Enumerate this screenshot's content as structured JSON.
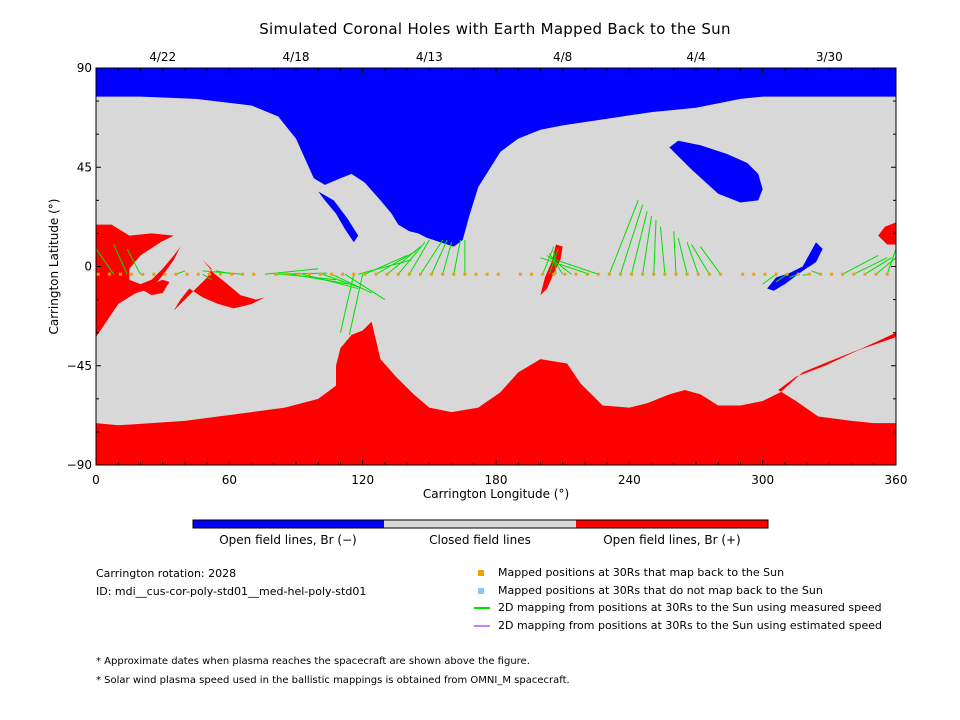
{
  "chart_data": {
    "type": "heatmap",
    "title": "Simulated Coronal Holes with Earth Mapped Back to the Sun",
    "xlabel": "Carrington Longitude (°)",
    "ylabel": "Carrington Latitude (°)",
    "xlim": [
      0,
      360
    ],
    "ylim": [
      -90,
      90
    ],
    "x_ticks": [
      0,
      60,
      120,
      180,
      240,
      300,
      360
    ],
    "y_ticks": [
      90,
      45,
      0,
      -45,
      -90
    ],
    "y_tick_labels": [
      "90",
      "45",
      "0",
      "−45",
      "−90"
    ],
    "top_dates": [
      {
        "lon": 30,
        "label": "4/22"
      },
      {
        "lon": 90,
        "label": "4/18"
      },
      {
        "lon": 150,
        "label": "4/13"
      },
      {
        "lon": 210,
        "label": "4/8"
      },
      {
        "lon": 270,
        "label": "4/4"
      },
      {
        "lon": 330,
        "label": "3/30"
      }
    ],
    "colors": {
      "open_negative": "#0000ff",
      "closed": "#d8d8d8",
      "open_positive": "#ff0000",
      "mapped": "#f0a000",
      "not_mapped": "#88c8f0",
      "measured": "#00e000",
      "estimated": "#c080ff"
    },
    "regions": {
      "open_negative": [
        [
          [
            0,
            90
          ],
          [
            360,
            90
          ],
          [
            360,
            77
          ],
          [
            335,
            77
          ],
          [
            300,
            77
          ],
          [
            290,
            76
          ],
          [
            270,
            72
          ],
          [
            250,
            70
          ],
          [
            230,
            67
          ],
          [
            210,
            64
          ],
          [
            200,
            62
          ],
          [
            190,
            58
          ],
          [
            182,
            52
          ],
          [
            172,
            36
          ],
          [
            168,
            23
          ],
          [
            165,
            12
          ],
          [
            161,
            9
          ],
          [
            155,
            11
          ],
          [
            149,
            13
          ],
          [
            145,
            15
          ],
          [
            141,
            16
          ],
          [
            136,
            19
          ],
          [
            133,
            24
          ],
          [
            128,
            30
          ],
          [
            121,
            38
          ],
          [
            115,
            42
          ],
          [
            110,
            40
          ],
          [
            103,
            37
          ],
          [
            98,
            40
          ],
          [
            90,
            58
          ],
          [
            82,
            68
          ],
          [
            70,
            73
          ],
          [
            45,
            76
          ],
          [
            20,
            77
          ],
          [
            0,
            77
          ]
        ],
        [
          [
            0,
            77
          ],
          [
            0,
            90
          ]
        ],
        [
          [
            258,
            54
          ],
          [
            268,
            44
          ],
          [
            280,
            33
          ],
          [
            290,
            29
          ],
          [
            298,
            30
          ],
          [
            300,
            35
          ],
          [
            298,
            42
          ],
          [
            293,
            47
          ],
          [
            284,
            51
          ],
          [
            272,
            55
          ],
          [
            262,
            57
          ]
        ],
        [
          [
            100,
            34
          ],
          [
            107,
            30
          ],
          [
            113,
            22
          ],
          [
            118,
            14
          ],
          [
            116,
            11
          ],
          [
            112,
            17
          ],
          [
            108,
            24
          ],
          [
            103,
            30
          ]
        ],
        [
          [
            324,
            11
          ],
          [
            327,
            8
          ],
          [
            324,
            2
          ],
          [
            318,
            -2
          ],
          [
            310,
            -8
          ],
          [
            305,
            -11
          ],
          [
            302,
            -10
          ],
          [
            306,
            -5
          ],
          [
            312,
            -3
          ],
          [
            318,
            0
          ]
        ]
      ],
      "open_positive": [
        [
          [
            0,
            -90
          ],
          [
            360,
            -90
          ],
          [
            360,
            -71
          ],
          [
            350,
            -71
          ],
          [
            340,
            -70
          ],
          [
            325,
            -68
          ],
          [
            315,
            -61
          ],
          [
            307,
            -56
          ],
          [
            315,
            -50
          ],
          [
            328,
            -45
          ],
          [
            343,
            -38
          ],
          [
            360,
            -32
          ],
          [
            360,
            -30
          ],
          [
            345,
            -37
          ],
          [
            330,
            -43
          ],
          [
            318,
            -48
          ],
          [
            308,
            -57
          ],
          [
            300,
            -61
          ],
          [
            290,
            -63
          ],
          [
            280,
            -63
          ],
          [
            272,
            -58
          ],
          [
            265,
            -56
          ],
          [
            258,
            -58
          ],
          [
            248,
            -62
          ],
          [
            240,
            -64
          ],
          [
            228,
            -63
          ],
          [
            218,
            -53
          ],
          [
            212,
            -44
          ],
          [
            200,
            -42
          ],
          [
            190,
            -48
          ],
          [
            182,
            -57
          ],
          [
            172,
            -64
          ],
          [
            160,
            -66
          ],
          [
            150,
            -64
          ],
          [
            143,
            -58
          ],
          [
            135,
            -50
          ],
          [
            128,
            -42
          ],
          [
            124,
            -25
          ],
          [
            120,
            -29
          ],
          [
            115,
            -31
          ],
          [
            110,
            -37
          ],
          [
            108,
            -45
          ],
          [
            108,
            -54
          ],
          [
            100,
            -60
          ],
          [
            85,
            -64
          ],
          [
            70,
            -66
          ],
          [
            55,
            -68
          ],
          [
            40,
            -70
          ],
          [
            25,
            -71
          ],
          [
            10,
            -72
          ],
          [
            0,
            -71
          ]
        ],
        [
          [
            0,
            19
          ],
          [
            7,
            19
          ],
          [
            15,
            14
          ],
          [
            25,
            15
          ],
          [
            35,
            14
          ],
          [
            29,
            11
          ],
          [
            20,
            5
          ],
          [
            15,
            -1
          ],
          [
            15,
            -6
          ],
          [
            20,
            -8
          ],
          [
            25,
            -6
          ],
          [
            30,
            -1
          ],
          [
            35,
            5
          ],
          [
            38,
            9
          ],
          [
            35,
            3
          ],
          [
            30,
            -4
          ],
          [
            25,
            -10
          ],
          [
            18,
            -12
          ],
          [
            10,
            -17
          ],
          [
            0,
            -32
          ]
        ],
        [
          [
            20,
            -10
          ],
          [
            25,
            -13
          ],
          [
            30,
            -12
          ],
          [
            33,
            -7
          ],
          [
            30,
            -6
          ],
          [
            25,
            -8
          ]
        ],
        [
          [
            48,
            3
          ],
          [
            53,
            -3
          ],
          [
            58,
            -7
          ],
          [
            65,
            -13
          ],
          [
            72,
            -15
          ],
          [
            76,
            -14
          ],
          [
            70,
            -17
          ],
          [
            62,
            -19
          ],
          [
            55,
            -17
          ],
          [
            48,
            -14
          ],
          [
            42,
            -10
          ],
          [
            38,
            -15
          ],
          [
            35,
            -20
          ],
          [
            45,
            -10
          ],
          [
            50,
            -5
          ],
          [
            52,
            -1
          ]
        ],
        [
          [
            360,
            20
          ],
          [
            355,
            18
          ],
          [
            352,
            14
          ],
          [
            356,
            10
          ],
          [
            360,
            10
          ]
        ],
        [
          [
            207,
            10
          ],
          [
            210,
            9
          ],
          [
            209,
            3
          ],
          [
            206,
            -3
          ],
          [
            203,
            -10
          ],
          [
            200,
            -13
          ],
          [
            202,
            -5
          ],
          [
            205,
            2
          ]
        ]
      ]
    },
    "mapped_points_at_30Rs": [
      1,
      6,
      11,
      16,
      21,
      26,
      31,
      36,
      41,
      46,
      51,
      56,
      61,
      66,
      71,
      81,
      86,
      91,
      96,
      101,
      106,
      111,
      116,
      121,
      126,
      131,
      136,
      141,
      146,
      151,
      156,
      161,
      166,
      171,
      176,
      181,
      191,
      196,
      201,
      206,
      211,
      216,
      221,
      226,
      231,
      236,
      241,
      246,
      251,
      256,
      261,
      266,
      271,
      276,
      281,
      291,
      296,
      301,
      306,
      311,
      316,
      321,
      326,
      331,
      336,
      341,
      346,
      351,
      356
    ],
    "measured_speed_mappings": [
      {
        "from": 8,
        "to": [
          0,
          8
        ]
      },
      {
        "from": 14,
        "to": [
          8,
          10
        ]
      },
      {
        "from": 20,
        "to": [
          14,
          8
        ]
      },
      {
        "from": 36,
        "to": [
          40,
          -2
        ]
      },
      {
        "from": 48,
        "to": [
          52,
          -6
        ]
      },
      {
        "from": 62,
        "to": [
          54,
          -2
        ]
      },
      {
        "from": 66,
        "to": [
          48,
          -2
        ]
      },
      {
        "from": 76,
        "to": [
          100,
          -1
        ]
      },
      {
        "from": 80,
        "to": [
          104,
          -3
        ]
      },
      {
        "from": 84,
        "to": [
          108,
          -6
        ]
      },
      {
        "from": 88,
        "to": [
          114,
          -8
        ]
      },
      {
        "from": 93,
        "to": [
          118,
          -10
        ]
      },
      {
        "from": 102,
        "to": [
          120,
          -10
        ]
      },
      {
        "from": 106,
        "to": [
          124,
          -12
        ]
      },
      {
        "from": 112,
        "to": [
          130,
          -15
        ]
      },
      {
        "from": 118,
        "to": [
          142,
          3
        ]
      },
      {
        "from": 121,
        "to": [
          140,
          5
        ]
      },
      {
        "from": 126,
        "to": [
          144,
          7
        ]
      },
      {
        "from": 131,
        "to": [
          146,
          9
        ]
      },
      {
        "from": 136,
        "to": [
          148,
          11
        ]
      },
      {
        "from": 141,
        "to": [
          150,
          12
        ]
      },
      {
        "from": 146,
        "to": [
          156,
          12
        ]
      },
      {
        "from": 151,
        "to": [
          158,
          12
        ]
      },
      {
        "from": 156,
        "to": [
          160,
          11
        ]
      },
      {
        "from": 161,
        "to": [
          164,
          12
        ]
      },
      {
        "from": 166,
        "to": [
          166,
          12
        ]
      },
      {
        "from": 116,
        "to": [
          110,
          -30
        ]
      },
      {
        "from": 120,
        "to": [
          114,
          -31
        ]
      },
      {
        "from": 201,
        "to": [
          206,
          9
        ]
      },
      {
        "from": 204,
        "to": [
          208,
          8
        ]
      },
      {
        "from": 207,
        "to": [
          206,
          7
        ]
      },
      {
        "from": 210,
        "to": [
          204,
          6
        ]
      },
      {
        "from": 214,
        "to": [
          203,
          5
        ]
      },
      {
        "from": 222,
        "to": [
          200,
          4
        ]
      },
      {
        "from": 226,
        "to": [
          204,
          4
        ]
      },
      {
        "from": 231,
        "to": [
          244,
          30
        ]
      },
      {
        "from": 236,
        "to": [
          246,
          28
        ]
      },
      {
        "from": 241,
        "to": [
          248,
          25
        ]
      },
      {
        "from": 246,
        "to": [
          250,
          23
        ]
      },
      {
        "from": 251,
        "to": [
          252,
          21
        ]
      },
      {
        "from": 256,
        "to": [
          254,
          18
        ]
      },
      {
        "from": 261,
        "to": [
          260,
          16
        ]
      },
      {
        "from": 266,
        "to": [
          262,
          13
        ]
      },
      {
        "from": 271,
        "to": [
          266,
          11
        ]
      },
      {
        "from": 276,
        "to": [
          268,
          10
        ]
      },
      {
        "from": 281,
        "to": [
          272,
          9
        ]
      },
      {
        "from": 306,
        "to": [
          300,
          -8
        ]
      },
      {
        "from": 311,
        "to": [
          306,
          -7
        ]
      },
      {
        "from": 316,
        "to": [
          312,
          -5
        ]
      },
      {
        "from": 321,
        "to": [
          318,
          -4
        ]
      },
      {
        "from": 326,
        "to": [
          322,
          -2
        ]
      },
      {
        "from": 336,
        "to": [
          352,
          5
        ]
      },
      {
        "from": 341,
        "to": [
          356,
          4
        ]
      },
      {
        "from": 346,
        "to": [
          358,
          4
        ]
      },
      {
        "from": 351,
        "to": [
          360,
          4
        ]
      },
      {
        "from": 356,
        "to": [
          360,
          8
        ]
      }
    ]
  },
  "colorbar": {
    "labels": [
      "Open field lines, Br (−)",
      "Closed field lines",
      "Open field lines, Br (+)"
    ]
  },
  "info": {
    "rotation": "Carrington rotation: 2028",
    "id": "ID: mdi__cus-cor-poly-std01__med-hel-poly-std01"
  },
  "legend": {
    "mapped": "Mapped positions at 30Rs that map back to the Sun",
    "not_mapped": "Mapped positions at 30Rs that do not map back to the Sun",
    "measured": "2D mapping from positions at 30Rs to the Sun using measured speed",
    "estimated": "2D mapping from positions at 30Rs to the Sun using estimated speed"
  },
  "footnotes": {
    "note1": "* Approximate dates when plasma reaches the spacecraft are shown above the figure.",
    "note2": "* Solar wind plasma speed used in the ballistic mappings is obtained from OMNI_M spacecraft."
  }
}
